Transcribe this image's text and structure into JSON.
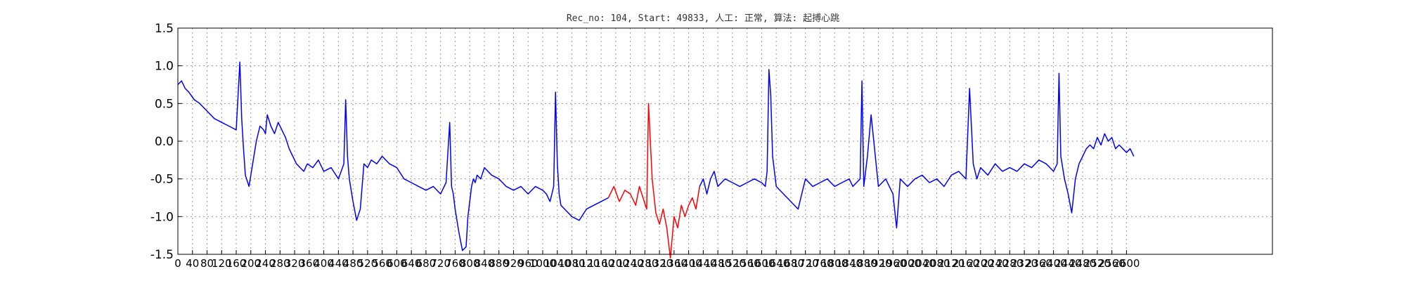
{
  "chart_data": {
    "type": "line",
    "title": "Rec_no: 104, Start: 49833, 人工: 正常, 算法: 起搏心跳",
    "xlabel": "",
    "ylabel": "",
    "xlim": [
      0,
      3000
    ],
    "ylim": [
      -1.5,
      1.5
    ],
    "x_ticks": [
      0,
      40,
      80,
      120,
      160,
      200,
      240,
      280,
      320,
      360,
      400,
      440,
      480,
      520,
      560,
      600,
      640,
      680,
      720,
      760,
      800,
      840,
      880,
      920,
      960,
      1000,
      1040,
      1080,
      1120,
      1160,
      1200,
      1240,
      1280,
      1320,
      1360,
      1400,
      1440,
      1480,
      1520,
      1560,
      1600,
      1640,
      1680,
      1720,
      1760,
      1800,
      1840,
      1880,
      1920,
      1960,
      2000,
      2040,
      2080,
      2120,
      2160,
      2200,
      2240,
      2280,
      2320,
      2360,
      2400,
      2440,
      2480,
      2520,
      2560,
      2600
    ],
    "x_tick_labels": [
      "0",
      "40",
      "80",
      "120",
      "160",
      "200",
      "240",
      "280",
      "320",
      "360",
      "400",
      "440",
      "480",
      "520",
      "560",
      "600",
      "640",
      "680",
      "720",
      "760",
      "800",
      "840",
      "880",
      "920",
      "960",
      "1000",
      "1040",
      "1080",
      "1120",
      "1160",
      "1200",
      "1240",
      "1280",
      "1320",
      "1360",
      "1400",
      "1440",
      "1480",
      "1520",
      "1560",
      "1600",
      "1640",
      "1680",
      "1720",
      "1760",
      "1800",
      "1840",
      "1880",
      "1920",
      "1960",
      "2000",
      "2040",
      "2080",
      "2120",
      "2160",
      "2200",
      "2240",
      "2280",
      "2320",
      "2360",
      "2400",
      "2440",
      "2480",
      "2520",
      "2560",
      "2600"
    ],
    "y_ticks": [
      -1.5,
      -1.0,
      -0.5,
      0.0,
      0.5,
      1.0,
      1.5
    ],
    "y_tick_labels": [
      "-1.5",
      "-1.0",
      "-0.5",
      "0.0",
      "0.5",
      "1.0",
      "1.5"
    ],
    "grid": true,
    "series": [
      {
        "color": "#0000ff",
        "x": [
          0,
          10,
          20,
          30,
          45,
          60,
          80,
          100,
          120,
          140,
          160,
          170,
          175,
          180,
          185,
          195,
          205,
          215,
          225,
          235,
          240,
          245,
          255,
          265,
          275,
          285,
          295,
          305,
          315,
          325,
          335,
          345,
          355,
          370,
          385,
          400,
          420,
          440,
          455,
          460,
          465,
          470,
          480,
          490,
          500,
          505,
          510,
          520,
          530,
          545,
          560,
          580,
          600,
          620,
          640,
          660,
          680,
          700,
          720,
          735,
          745,
          750,
          755,
          760,
          770,
          780,
          790,
          795,
          800,
          805,
          810,
          815,
          820,
          830,
          840,
          860,
          880,
          900,
          920,
          940,
          960,
          980,
          1000,
          1010,
          1020,
          1030,
          1035,
          1040,
          1045,
          1050,
          1060,
          1080,
          1100,
          1120,
          1140,
          1160,
          1180
        ],
        "y": [
          0.75,
          0.8,
          0.7,
          0.65,
          0.55,
          0.5,
          0.4,
          0.3,
          0.25,
          0.2,
          0.15,
          1.05,
          0.3,
          -0.1,
          -0.45,
          -0.6,
          -0.3,
          0.0,
          0.2,
          0.15,
          0.1,
          0.35,
          0.2,
          0.1,
          0.25,
          0.15,
          0.05,
          -0.1,
          -0.2,
          -0.3,
          -0.35,
          -0.4,
          -0.3,
          -0.35,
          -0.25,
          -0.4,
          -0.35,
          -0.5,
          -0.3,
          0.55,
          -0.2,
          -0.5,
          -0.8,
          -1.05,
          -0.9,
          -0.6,
          -0.3,
          -0.35,
          -0.25,
          -0.3,
          -0.2,
          -0.3,
          -0.35,
          -0.5,
          -0.55,
          -0.6,
          -0.65,
          -0.6,
          -0.7,
          -0.55,
          0.25,
          -0.6,
          -0.7,
          -0.9,
          -1.2,
          -1.45,
          -1.4,
          -1.0,
          -0.8,
          -0.6,
          -0.5,
          -0.55,
          -0.45,
          -0.5,
          -0.35,
          -0.45,
          -0.5,
          -0.6,
          -0.65,
          -0.6,
          -0.7,
          -0.6,
          -0.65,
          -0.7,
          -0.8,
          -0.6,
          0.65,
          -0.3,
          -0.7,
          -0.85,
          -0.9,
          -1.0,
          -1.05,
          -0.9,
          -0.85,
          -0.8,
          -0.75
        ]
      },
      {
        "color": "#ff0000",
        "x": [
          1180,
          1195,
          1210,
          1225,
          1240,
          1255,
          1265,
          1275,
          1285,
          1290,
          1300,
          1310,
          1320,
          1330,
          1340,
          1350,
          1360,
          1370,
          1380,
          1390,
          1400,
          1410,
          1420,
          1430
        ],
        "y": [
          -0.75,
          -0.6,
          -0.8,
          -0.65,
          -0.7,
          -0.85,
          -0.6,
          -0.75,
          -0.9,
          0.5,
          -0.5,
          -0.95,
          -1.1,
          -0.9,
          -1.15,
          -1.55,
          -1.0,
          -1.15,
          -0.85,
          -1.0,
          -0.85,
          -0.75,
          -0.9,
          -0.6
        ]
      },
      {
        "color": "#0000ff",
        "x": [
          1430,
          1440,
          1450,
          1460,
          1470,
          1480,
          1490,
          1500,
          1520,
          1540,
          1560,
          1580,
          1600,
          1610,
          1615,
          1620,
          1625,
          1630,
          1640,
          1660,
          1680,
          1700,
          1720,
          1740,
          1760,
          1780,
          1800,
          1820,
          1840,
          1850,
          1860,
          1870,
          1875,
          1880,
          1890,
          1900,
          1920,
          1940,
          1960,
          1970,
          1980,
          2000,
          2020,
          2040,
          2060,
          2080,
          2100,
          2120,
          2140,
          2160,
          2170,
          2180,
          2190,
          2200,
          2220,
          2240,
          2260,
          2280,
          2300,
          2320,
          2340,
          2360,
          2380,
          2400,
          2410,
          2415,
          2420,
          2430,
          2440,
          2450,
          2460,
          2470,
          2480,
          2490,
          2500,
          2510,
          2520,
          2530,
          2540,
          2550,
          2560,
          2570,
          2580,
          2590,
          2600,
          2610,
          2620
        ],
        "y": [
          -0.6,
          -0.5,
          -0.7,
          -0.5,
          -0.4,
          -0.6,
          -0.55,
          -0.5,
          -0.55,
          -0.6,
          -0.55,
          -0.5,
          -0.55,
          -0.6,
          -0.4,
          0.95,
          0.6,
          -0.2,
          -0.6,
          -0.7,
          -0.8,
          -0.9,
          -0.5,
          -0.6,
          -0.55,
          -0.5,
          -0.6,
          -0.55,
          -0.5,
          -0.6,
          -0.55,
          -0.5,
          0.8,
          -0.6,
          -0.2,
          0.35,
          -0.6,
          -0.5,
          -0.7,
          -1.15,
          -0.5,
          -0.6,
          -0.5,
          -0.45,
          -0.55,
          -0.5,
          -0.6,
          -0.45,
          -0.4,
          -0.5,
          0.7,
          -0.3,
          -0.5,
          -0.35,
          -0.45,
          -0.3,
          -0.4,
          -0.35,
          -0.4,
          -0.3,
          -0.35,
          -0.25,
          -0.3,
          -0.4,
          -0.3,
          0.9,
          -0.2,
          -0.5,
          -0.7,
          -0.95,
          -0.5,
          -0.3,
          -0.2,
          -0.1,
          -0.05,
          -0.1,
          0.05,
          -0.05,
          0.1,
          0.0,
          0.05,
          -0.1,
          -0.05,
          -0.1,
          -0.15,
          -0.1,
          -0.2
        ]
      }
    ]
  }
}
